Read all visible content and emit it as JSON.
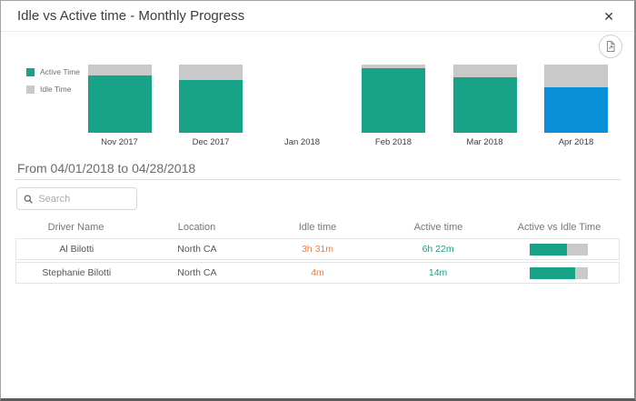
{
  "modal": {
    "title": "Idle vs Active time - Monthly Progress",
    "close_glyph": "✕"
  },
  "chart_data": {
    "type": "bar",
    "stacked": true,
    "unit": "percent",
    "categories": [
      "Nov 2017",
      "Dec 2017",
      "Jan 2018",
      "Feb 2018",
      "Mar 2018",
      "Apr 2018"
    ],
    "series": [
      {
        "name": "Active Time",
        "values": [
          84,
          78,
          null,
          95,
          81,
          67
        ]
      },
      {
        "name": "Idle Time",
        "values": [
          16,
          22,
          null,
          5,
          19,
          33
        ]
      }
    ],
    "selected_category": "Apr 2018",
    "legend_position": "left",
    "ylim": [
      0,
      100
    ],
    "grid": false
  },
  "date_range_label": "From 04/01/2018 to 04/28/2018",
  "search": {
    "placeholder": "Search"
  },
  "table": {
    "columns": [
      "Driver Name",
      "Location",
      "Idle time",
      "Active time",
      "Active vs Idle Time"
    ],
    "rows": [
      {
        "driver_name": "Al Bilotti",
        "location": "North CA",
        "idle_time": "3h 31m",
        "active_time": "6h 22m",
        "active_ratio_pct": 65
      },
      {
        "driver_name": "Stephanie Bilotti",
        "location": "North CA",
        "idle_time": "4m",
        "active_time": "14m",
        "active_ratio_pct": 78
      }
    ]
  },
  "colors": {
    "active_teal": "#18a287",
    "idle_gray": "#c9c9c9",
    "selected_blue": "#0a90d8",
    "idle_text_orange": "#e87f43"
  }
}
